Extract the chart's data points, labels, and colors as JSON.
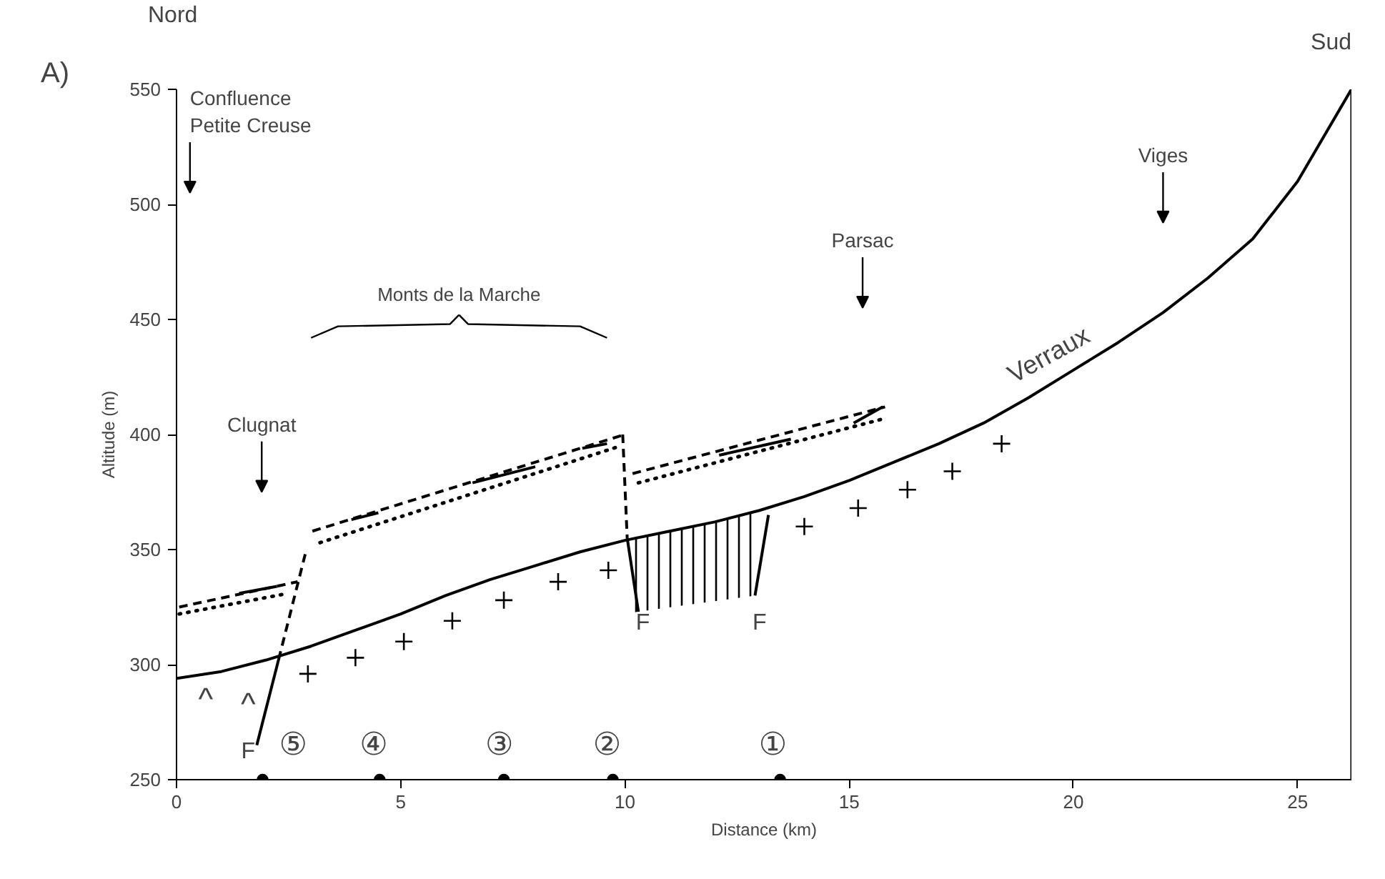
{
  "chart_data": {
    "type": "line",
    "xlabel": "Distance (km)",
    "ylabel": "Altitude (m)",
    "xlim": [
      0,
      26.2
    ],
    "ylim": [
      250,
      550
    ],
    "xticks": [
      0,
      5,
      10,
      15,
      20,
      25
    ],
    "yticks": [
      250,
      300,
      350,
      400,
      450,
      500,
      550
    ],
    "grid": false,
    "series": [
      {
        "color": "#000000",
        "line_style": "solid",
        "x": [
          0,
          1,
          2,
          3,
          4,
          5,
          6,
          7,
          8,
          9,
          10,
          11,
          12,
          13,
          14,
          15,
          16,
          17,
          18,
          19,
          20,
          21,
          22,
          23,
          24,
          25,
          26.2
        ],
        "values": [
          294,
          297,
          302,
          308,
          315,
          322,
          330,
          337,
          343,
          349,
          354,
          358,
          362,
          367,
          373,
          380,
          388,
          396,
          405,
          416,
          428,
          440,
          453,
          468,
          485,
          510,
          550
        ]
      },
      {
        "type": "area",
        "color": "#000000",
        "x": [
          10.1,
          11,
          12,
          12.9
        ],
        "values": [
          355,
          358,
          362,
          366
        ]
      },
      {
        "type": "scatter",
        "color": "#000000",
        "marker": "cross",
        "x": [
          2.93,
          3.99,
          5.07,
          6.15,
          7.3,
          8.51,
          9.63,
          14.0,
          15.2,
          16.3,
          17.3,
          18.4
        ],
        "values": [
          296,
          303,
          310,
          319,
          328,
          336,
          341,
          360,
          368,
          376,
          384,
          396
        ]
      },
      {
        "type": "scatter",
        "color": "#000000",
        "marker": "circle",
        "x": [
          1.92,
          4.53,
          7.3,
          9.73,
          13.46
        ],
        "values": [
          250,
          250,
          250,
          250,
          250
        ]
      },
      {
        "type": "line",
        "color": "#000000",
        "line_style": "dashed",
        "x": [
          0.06,
          2.7
        ],
        "values": [
          325,
          336
        ]
      },
      {
        "type": "line",
        "color": "#000000",
        "line_style": "dotted",
        "x": [
          0.06,
          2.5
        ],
        "values": [
          322,
          331
        ]
      },
      {
        "type": "line",
        "color": "#000000",
        "line_style": "dashed",
        "x": [
          3.03,
          10.0
        ],
        "values": [
          358,
          400
        ]
      },
      {
        "type": "line",
        "color": "#000000",
        "line_style": "dotted",
        "x": [
          3.2,
          9.9
        ],
        "values": [
          353,
          395
        ]
      },
      {
        "type": "line",
        "color": "#000000",
        "line_style": "dashed",
        "x": [
          10.17,
          15.8
        ],
        "values": [
          383,
          412
        ]
      },
      {
        "type": "line",
        "color": "#000000",
        "line_style": "dotted",
        "x": [
          10.3,
          15.8
        ],
        "values": [
          379,
          407
        ]
      },
      {
        "type": "line",
        "color": "#000000",
        "line_style": "solid",
        "x": [
          1.4,
          2.24
        ],
        "values": [
          331,
          334
        ]
      },
      {
        "type": "line",
        "color": "#000000",
        "line_style": "solid",
        "x": [
          3.9,
          4.5
        ],
        "values": [
          363,
          366
        ]
      },
      {
        "type": "line",
        "color": "#000000",
        "line_style": "solid",
        "x": [
          6.6,
          8.0
        ],
        "values": [
          379,
          386
        ]
      },
      {
        "type": "line",
        "color": "#000000",
        "line_style": "solid",
        "x": [
          9.05,
          9.6
        ],
        "values": [
          394,
          396
        ]
      },
      {
        "type": "line",
        "color": "#000000",
        "line_style": "solid",
        "x": [
          12.1,
          13.7
        ],
        "values": [
          391,
          398
        ]
      },
      {
        "type": "line",
        "color": "#000000",
        "line_style": "solid",
        "x": [
          15.1,
          15.75
        ],
        "values": [
          405,
          412
        ]
      },
      {
        "type": "line",
        "color": "#000000",
        "line_style": "dashed",
        "x": [
          2.87,
          2.3
        ],
        "values": [
          348,
          304
        ]
      },
      {
        "type": "line",
        "color": "#000000",
        "line_style": "solid",
        "x": [
          2.3,
          1.79
        ],
        "values": [
          304,
          265
        ]
      },
      {
        "type": "line",
        "color": "#000000",
        "line_style": "dashed",
        "x": [
          9.95,
          10.05
        ],
        "values": [
          400,
          355
        ]
      },
      {
        "type": "line",
        "color": "#000000",
        "line_style": "solid",
        "x": [
          10.05,
          10.3
        ],
        "values": [
          355,
          323
        ]
      },
      {
        "type": "line",
        "color": "#000000",
        "line_style": "solid",
        "x": [
          13.2,
          12.9
        ],
        "values": [
          365,
          330
        ]
      }
    ],
    "ref_lines": [
      {
        "axis": "x",
        "value": 26.2
      }
    ],
    "annotations": [
      "Nord",
      "Sud",
      "A)",
      "Confluence\nPetite Creuse",
      "Clugnat",
      "Parsac",
      "Viges",
      "Monts de la Marche",
      "Verraux",
      "F",
      "F",
      "F",
      "^",
      "^",
      "⑤",
      "④",
      "③",
      "②",
      "①"
    ]
  }
}
